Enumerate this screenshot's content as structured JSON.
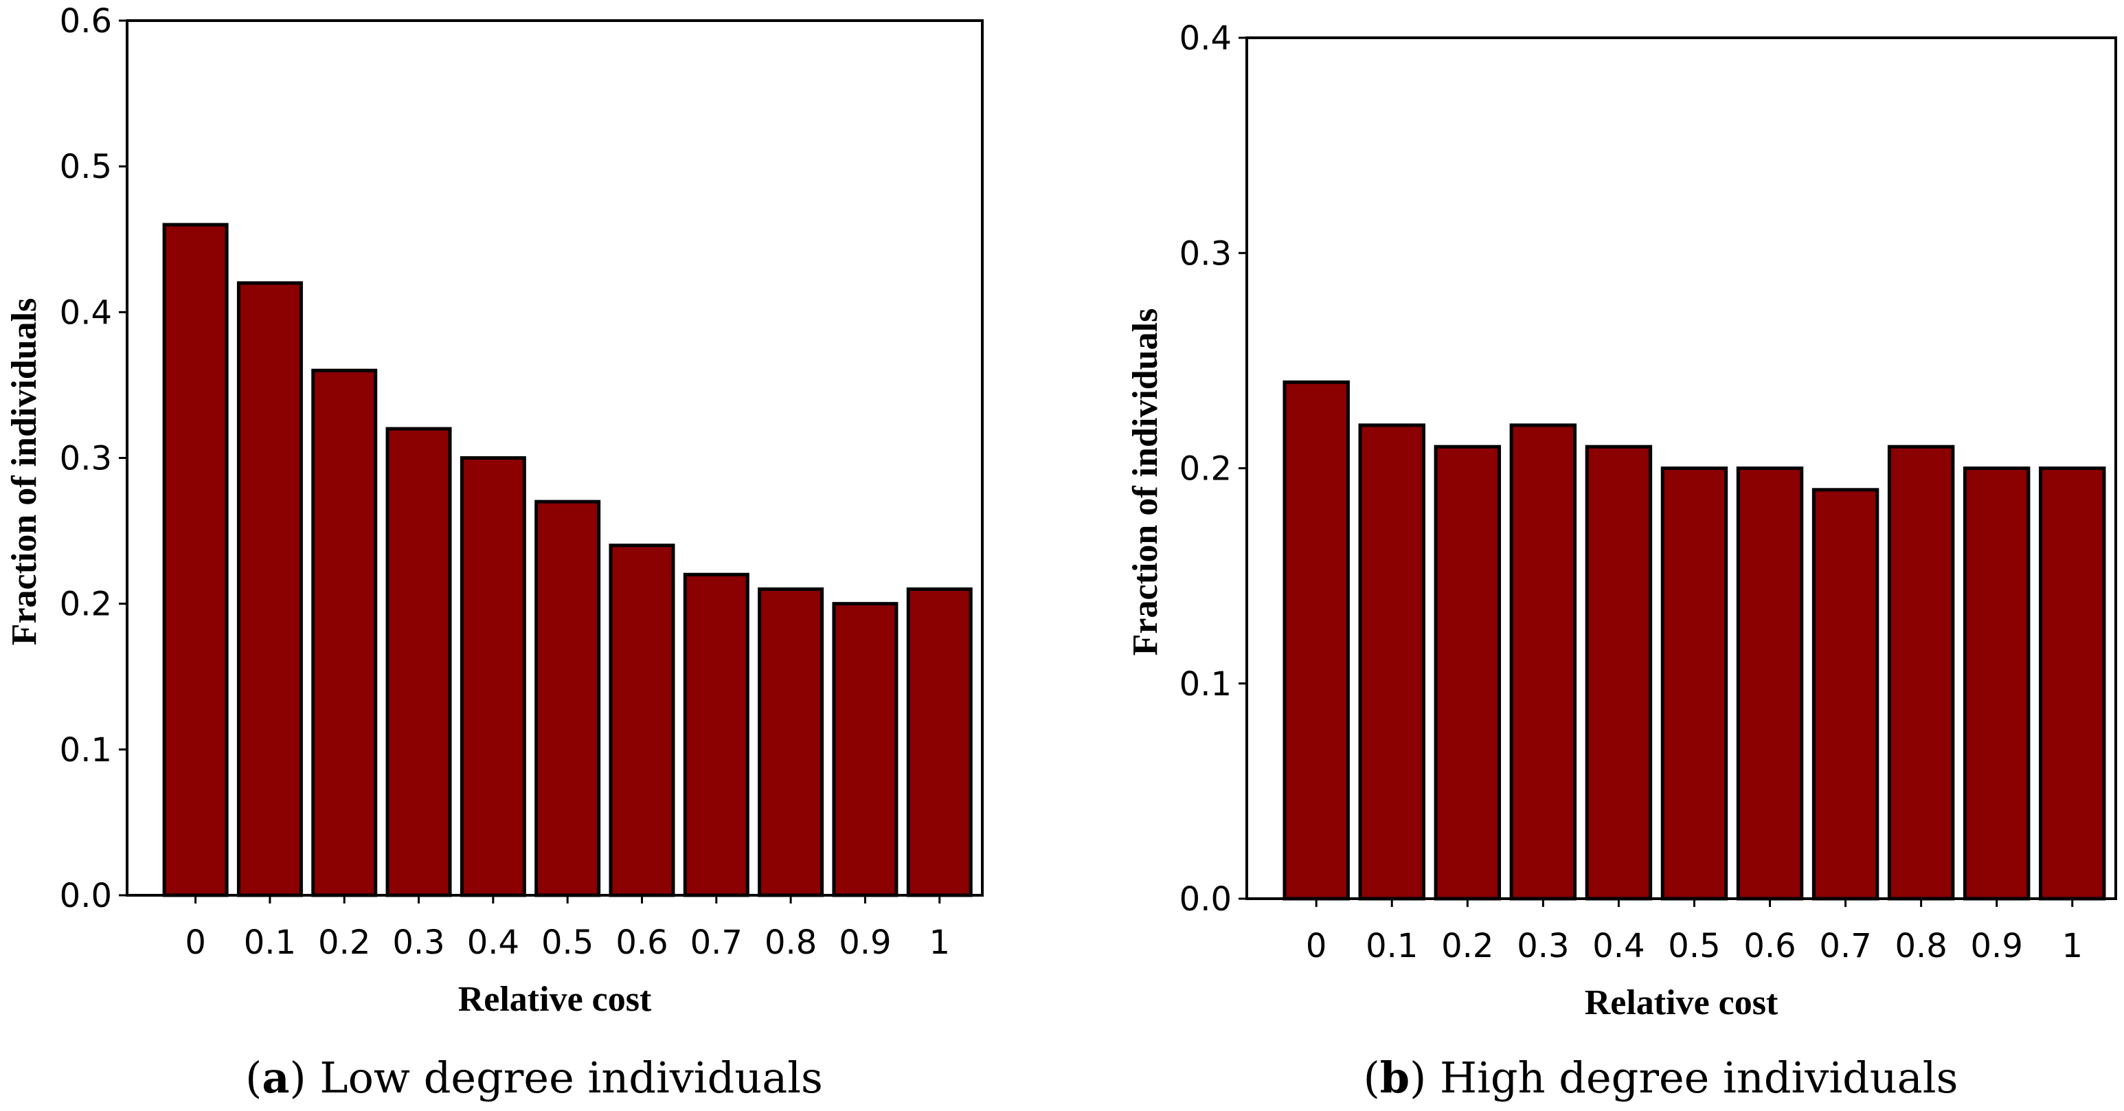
{
  "chart_data": [
    {
      "type": "bar",
      "panel": "a",
      "caption_letter": "a",
      "caption_text": "Low degree individuals",
      "categories": [
        "0",
        "0.1",
        "0.2",
        "0.3",
        "0.4",
        "0.5",
        "0.6",
        "0.7",
        "0.8",
        "0.9",
        "1"
      ],
      "values": [
        0.46,
        0.42,
        0.36,
        0.32,
        0.3,
        0.27,
        0.24,
        0.22,
        0.21,
        0.2,
        0.21
      ],
      "xlabel": "Relative cost",
      "ylabel": "Fraction of individuals",
      "ylim": [
        0,
        0.6
      ],
      "yticks": [
        0.0,
        0.1,
        0.2,
        0.3,
        0.4,
        0.5,
        0.6
      ],
      "ytick_labels": [
        "0.0",
        "0.1",
        "0.2",
        "0.3",
        "0.4",
        "0.5",
        "0.6"
      ],
      "bar_color": "#8b0000",
      "grid": false
    },
    {
      "type": "bar",
      "panel": "b",
      "caption_letter": "b",
      "caption_text": "High degree individuals",
      "categories": [
        "0",
        "0.1",
        "0.2",
        "0.3",
        "0.4",
        "0.5",
        "0.6",
        "0.7",
        "0.8",
        "0.9",
        "1"
      ],
      "values": [
        0.24,
        0.22,
        0.21,
        0.22,
        0.21,
        0.2,
        0.2,
        0.19,
        0.21,
        0.2,
        0.2
      ],
      "xlabel": "Relative cost",
      "ylabel": "Fraction of individuals",
      "ylim": [
        0,
        0.4
      ],
      "yticks": [
        0.0,
        0.1,
        0.2,
        0.3,
        0.4
      ],
      "ytick_labels": [
        "0.0",
        "0.1",
        "0.2",
        "0.3",
        "0.4"
      ],
      "bar_color": "#8b0000",
      "grid": false
    }
  ]
}
